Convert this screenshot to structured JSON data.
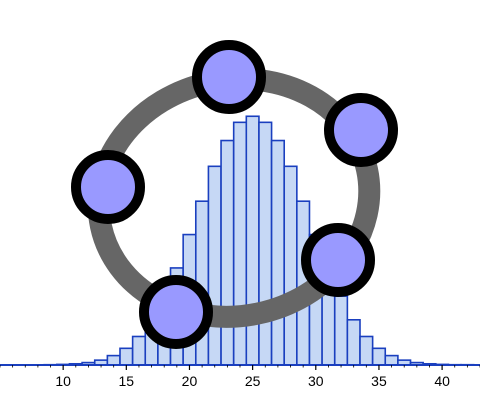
{
  "logo": {
    "name": "geogebra-logo",
    "ring_color": "#666666",
    "point_fill": "#9999ff",
    "point_stroke": "#000000"
  },
  "chart_data": {
    "type": "bar",
    "title": "",
    "xlabel": "",
    "ylabel": "",
    "xlim": [
      5,
      43
    ],
    "ylim": [
      0,
      0.09
    ],
    "grid": false,
    "x_ticks": [
      10,
      15,
      20,
      25,
      30,
      35,
      40
    ],
    "bar_fill": "#c6d8f5",
    "bar_stroke": "#1a3fbf",
    "axis_color": "#1a3fbf",
    "categories": [
      9,
      10,
      11,
      12,
      13,
      14,
      15,
      16,
      17,
      18,
      19,
      20,
      21,
      22,
      23,
      24,
      25,
      26,
      27,
      28,
      29,
      30,
      31,
      32,
      33,
      34,
      35,
      36,
      37,
      38,
      39,
      40,
      41,
      42
    ],
    "values": [
      0.0001,
      0.0002,
      0.0004,
      0.0008,
      0.0016,
      0.0031,
      0.0055,
      0.0094,
      0.0149,
      0.0227,
      0.032,
      0.043,
      0.054,
      0.0655,
      0.074,
      0.08,
      0.082,
      0.08,
      0.074,
      0.0655,
      0.054,
      0.043,
      0.032,
      0.0227,
      0.0149,
      0.0094,
      0.0055,
      0.0031,
      0.0016,
      0.0008,
      0.0004,
      0.0002,
      0.0001,
      0.0001
    ]
  }
}
